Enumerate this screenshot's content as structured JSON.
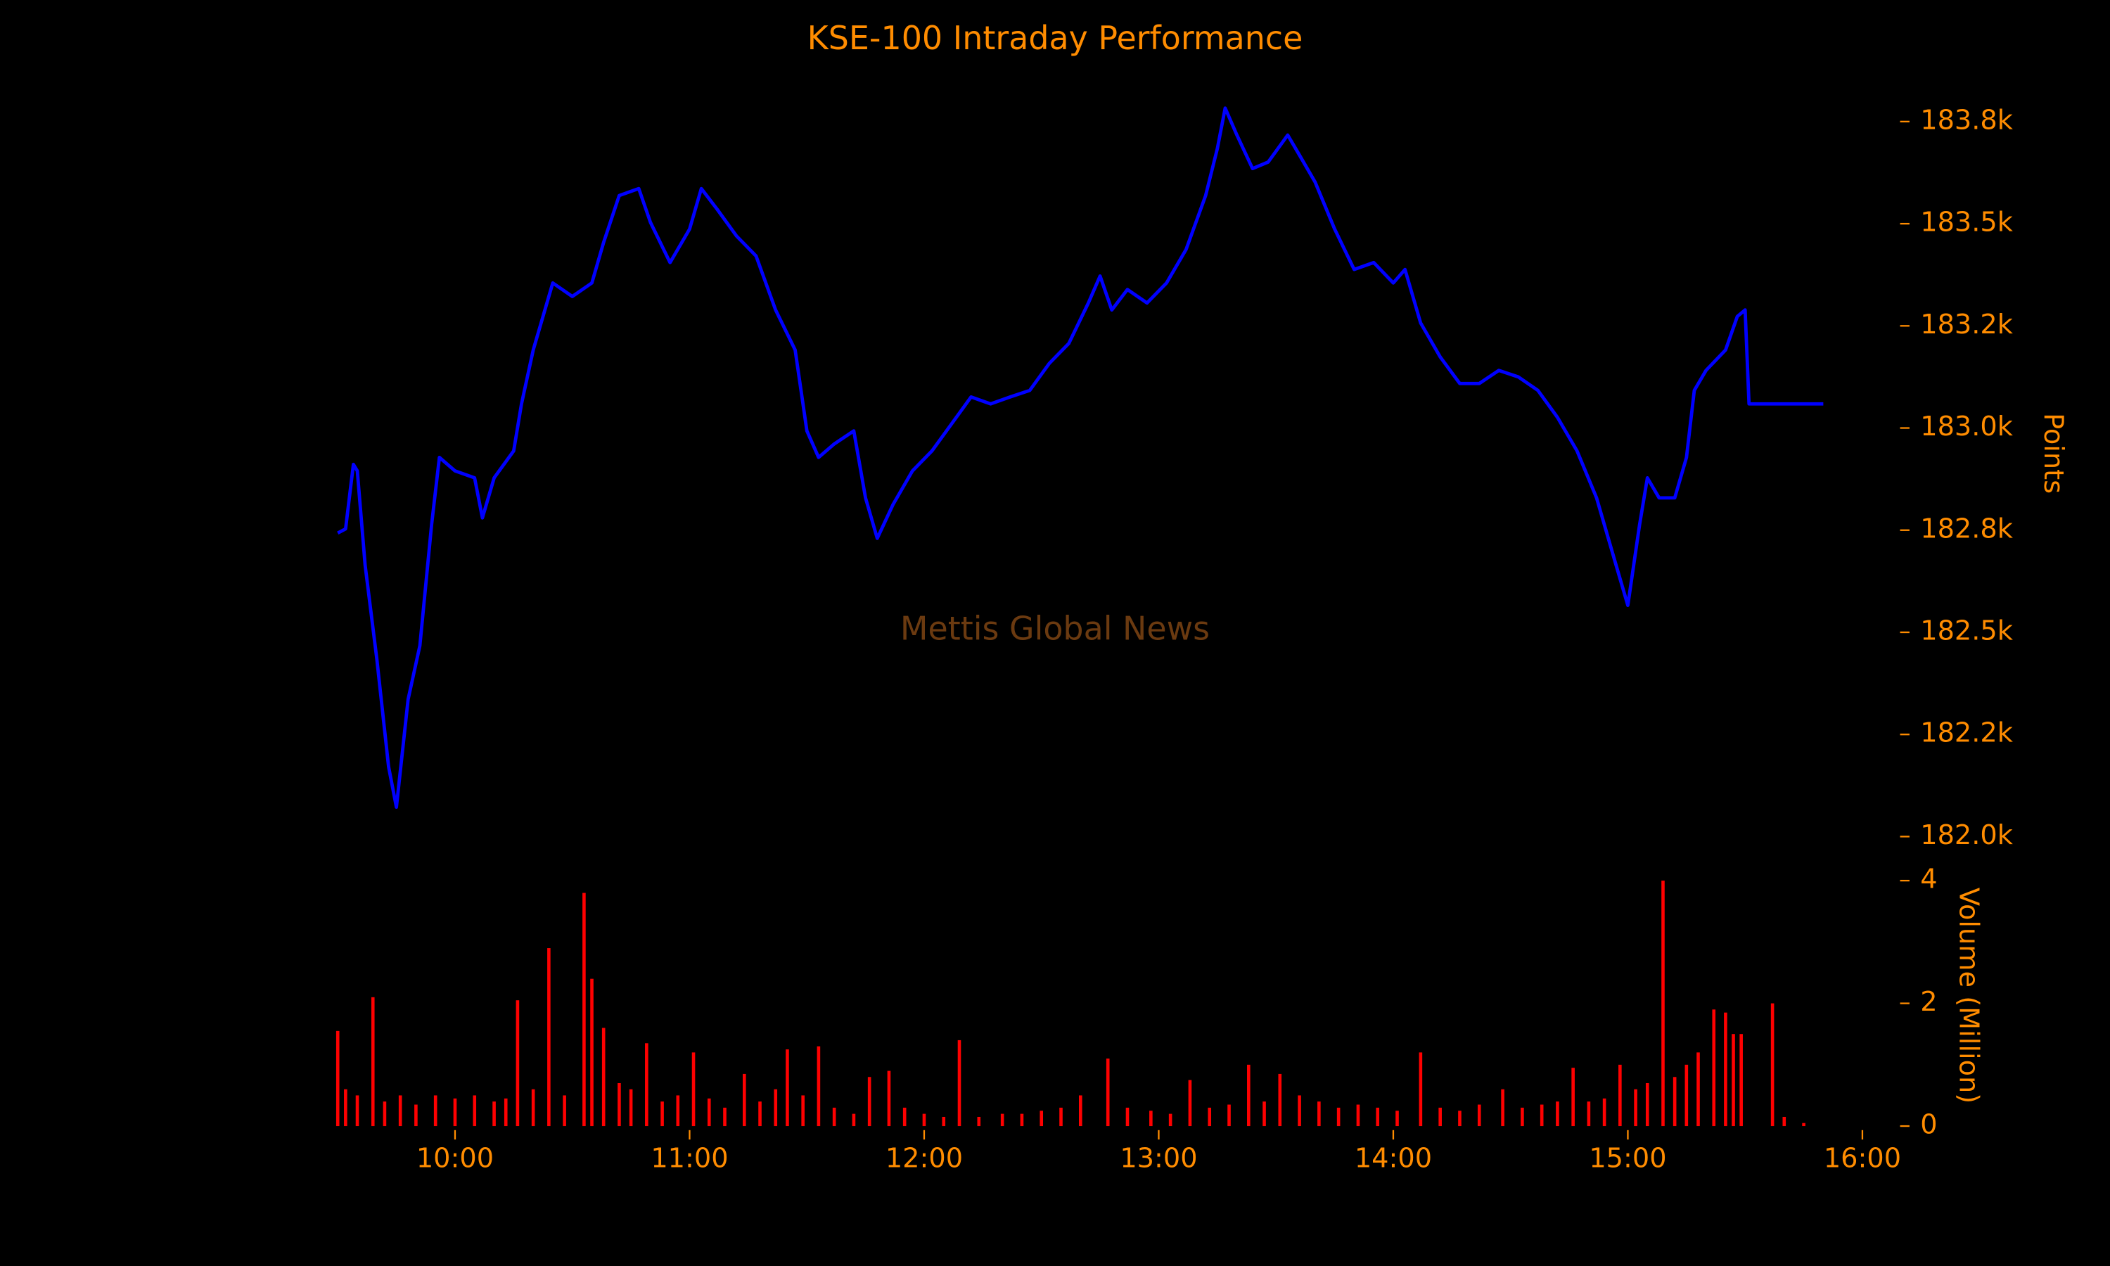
{
  "chart_data": [
    {
      "type": "line",
      "title": "KSE-100 Intraday Performance",
      "watermark": "Mettis Global News",
      "y_label": "Points",
      "color": "#0000ff",
      "x": [
        "09:30",
        "09:32",
        "09:34",
        "09:35",
        "09:37",
        "09:40",
        "09:43",
        "09:45",
        "09:48",
        "09:51",
        "09:54",
        "09:56",
        "10:00",
        "10:05",
        "10:07",
        "10:10",
        "10:15",
        "10:17",
        "10:20",
        "10:25",
        "10:30",
        "10:35",
        "10:38",
        "10:42",
        "10:47",
        "10:50",
        "10:55",
        "11:00",
        "11:03",
        "11:07",
        "11:12",
        "11:17",
        "11:22",
        "11:27",
        "11:30",
        "11:33",
        "11:37",
        "11:42",
        "11:45",
        "11:48",
        "11:52",
        "11:57",
        "12:02",
        "12:07",
        "12:12",
        "12:17",
        "12:22",
        "12:27",
        "12:32",
        "12:37",
        "12:42",
        "12:45",
        "12:48",
        "12:52",
        "12:57",
        "13:02",
        "13:07",
        "13:12",
        "13:15",
        "13:17",
        "13:20",
        "13:24",
        "13:28",
        "13:33",
        "13:36",
        "13:40",
        "13:45",
        "13:50",
        "13:55",
        "14:00",
        "14:03",
        "14:07",
        "14:12",
        "14:17",
        "14:22",
        "14:27",
        "14:32",
        "14:37",
        "14:42",
        "14:47",
        "14:52",
        "14:57",
        "15:00",
        "15:03",
        "15:05",
        "15:08",
        "15:12",
        "15:15",
        "15:17",
        "15:20",
        "15:25",
        "15:28",
        "15:30",
        "15:31",
        "15:50"
      ],
      "values": [
        182743,
        182753,
        182911,
        182895,
        182664,
        182434,
        182171,
        182072,
        182336,
        182467,
        182763,
        182928,
        182895,
        182878,
        182780,
        182878,
        182944,
        183059,
        183191,
        183355,
        183322,
        183355,
        183454,
        183569,
        183586,
        183503,
        183405,
        183487,
        183586,
        183536,
        183470,
        183421,
        183289,
        183191,
        182993,
        182928,
        182961,
        182993,
        182829,
        182730,
        182812,
        182895,
        182944,
        183010,
        183076,
        183059,
        183076,
        183092,
        183158,
        183207,
        183306,
        183372,
        183289,
        183339,
        183306,
        183355,
        183437,
        183569,
        183684,
        183783,
        183717,
        183635,
        183651,
        183717,
        183668,
        183602,
        183487,
        183388,
        183405,
        183355,
        183388,
        183257,
        183174,
        183109,
        183109,
        183141,
        183125,
        183092,
        183026,
        182944,
        182829,
        182664,
        182566,
        182763,
        182878,
        182829,
        182829,
        182928,
        183092,
        183141,
        183191,
        183273,
        183289,
        183059,
        183059
      ],
      "xlim": [
        "09:30",
        "16:00"
      ],
      "ylim": [
        181950,
        183850
      ],
      "yticks": [
        {
          "value": 182000,
          "label": "182.0k"
        },
        {
          "value": 182250,
          "label": "182.2k"
        },
        {
          "value": 182500,
          "label": "182.5k"
        },
        {
          "value": 182750,
          "label": "182.8k"
        },
        {
          "value": 183000,
          "label": "183.0k"
        },
        {
          "value": 183250,
          "label": "183.2k"
        },
        {
          "value": 183500,
          "label": "183.5k"
        },
        {
          "value": 183750,
          "label": "183.8k"
        }
      ]
    },
    {
      "type": "bar",
      "y_label": "Volume (Million)",
      "color": "#ff0000",
      "x": [
        "09:30",
        "09:32",
        "09:35",
        "09:39",
        "09:42",
        "09:46",
        "09:50",
        "09:55",
        "10:00",
        "10:05",
        "10:10",
        "10:13",
        "10:16",
        "10:20",
        "10:24",
        "10:28",
        "10:33",
        "10:35",
        "10:38",
        "10:42",
        "10:45",
        "10:49",
        "10:53",
        "10:57",
        "11:01",
        "11:05",
        "11:09",
        "11:14",
        "11:18",
        "11:22",
        "11:25",
        "11:29",
        "11:33",
        "11:37",
        "11:42",
        "11:46",
        "11:51",
        "11:55",
        "12:00",
        "12:05",
        "12:09",
        "12:14",
        "12:20",
        "12:25",
        "12:30",
        "12:35",
        "12:40",
        "12:47",
        "12:52",
        "12:58",
        "13:03",
        "13:08",
        "13:13",
        "13:18",
        "13:23",
        "13:27",
        "13:31",
        "13:36",
        "13:41",
        "13:46",
        "13:51",
        "13:56",
        "14:01",
        "14:07",
        "14:12",
        "14:17",
        "14:22",
        "14:28",
        "14:33",
        "14:38",
        "14:42",
        "14:46",
        "14:50",
        "14:54",
        "14:58",
        "15:02",
        "15:05",
        "15:09",
        "15:12",
        "15:15",
        "15:18",
        "15:22",
        "15:25",
        "15:27",
        "15:29",
        "15:37",
        "15:40",
        "15:45"
      ],
      "values": [
        1.55,
        0.6,
        0.5,
        2.1,
        0.4,
        0.5,
        0.35,
        0.5,
        0.45,
        0.5,
        0.4,
        0.45,
        2.05,
        0.6,
        2.9,
        0.5,
        3.8,
        2.4,
        1.6,
        0.7,
        0.6,
        1.35,
        0.4,
        0.5,
        1.2,
        0.45,
        0.3,
        0.85,
        0.4,
        0.6,
        1.25,
        0.5,
        1.3,
        0.3,
        0.2,
        0.8,
        0.9,
        0.3,
        0.2,
        0.15,
        1.4,
        0.15,
        0.2,
        0.2,
        0.25,
        0.3,
        0.5,
        1.1,
        0.3,
        0.25,
        0.2,
        0.75,
        0.3,
        0.35,
        1.0,
        0.4,
        0.85,
        0.5,
        0.4,
        0.3,
        0.35,
        0.3,
        0.25,
        1.2,
        0.3,
        0.25,
        0.35,
        0.6,
        0.3,
        0.35,
        0.4,
        0.95,
        0.4,
        0.45,
        1.0,
        0.6,
        0.7,
        4.0,
        0.8,
        1.0,
        1.2,
        1.9,
        1.85,
        1.5,
        1.5,
        2.0,
        0.15,
        0.05
      ],
      "xlim": [
        "09:30",
        "16:00"
      ],
      "xticks": [
        "10:00",
        "11:00",
        "12:00",
        "13:00",
        "14:00",
        "15:00",
        "16:00"
      ],
      "ylim": [
        0,
        4.1
      ],
      "yticks": [
        0,
        2,
        4
      ]
    }
  ]
}
